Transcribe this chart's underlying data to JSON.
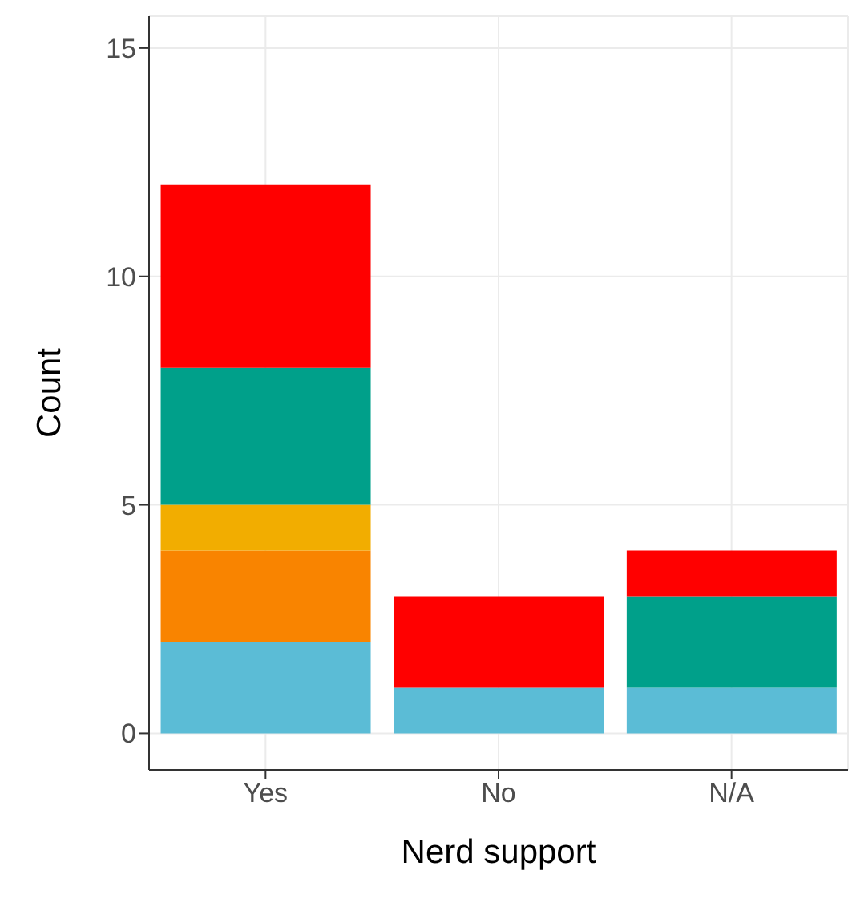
{
  "chart_data": {
    "type": "bar",
    "xlabel": "Nerd support",
    "ylabel": "Count",
    "categories": [
      "Yes",
      "No",
      "N/A"
    ],
    "stacked": true,
    "series": [
      {
        "color": "#5bbcd6",
        "values": [
          2,
          1,
          1
        ]
      },
      {
        "color": "#f98400",
        "values": [
          2,
          0,
          0
        ]
      },
      {
        "color": "#f2ad00",
        "values": [
          1,
          0,
          0
        ]
      },
      {
        "color": "#00a08a",
        "values": [
          3,
          0,
          2
        ]
      },
      {
        "color": "#ff0000",
        "values": [
          4,
          2,
          1
        ]
      }
    ],
    "ylim": [
      -0.8,
      15.7
    ],
    "yticks": [
      0,
      5,
      10,
      15
    ],
    "grid": true
  }
}
